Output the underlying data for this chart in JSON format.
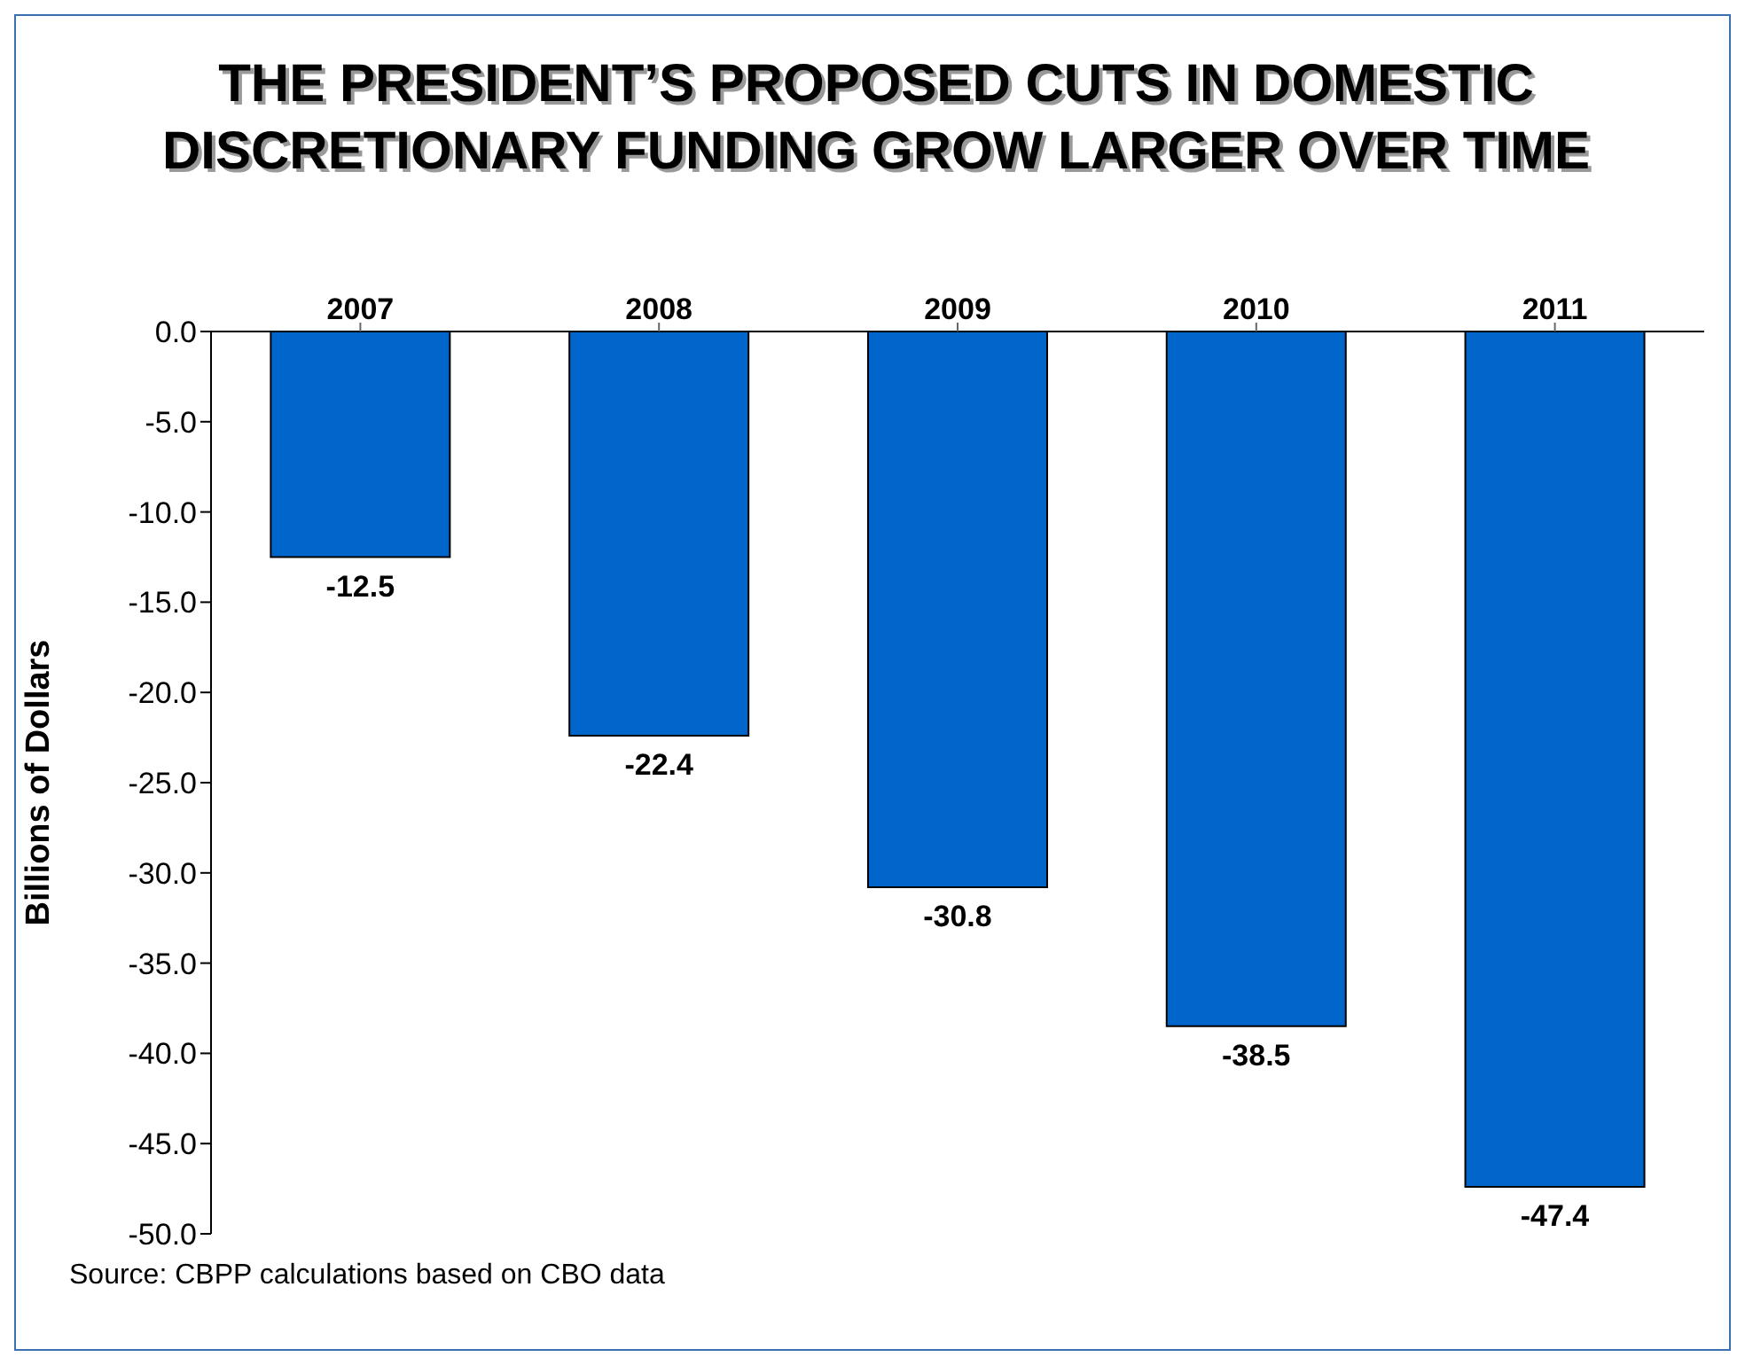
{
  "chart_data": {
    "type": "bar",
    "title": "THE PRESIDENT’S PROPOSED CUTS IN DOMESTIC DISCRETIONARY FUNDING GROW LARGER OVER TIME",
    "ylabel": "Billions of Dollars",
    "categories": [
      "2007",
      "2008",
      "2009",
      "2010",
      "2011"
    ],
    "values": [
      -12.5,
      -22.4,
      -30.8,
      -38.5,
      -47.4
    ],
    "color": "#0066cc",
    "data_labels": true,
    "grid": false,
    "ylim": [
      -50,
      0
    ],
    "yticks": [
      {
        "value": 0,
        "label": "0.0"
      },
      {
        "value": -5,
        "label": "-5.0"
      },
      {
        "value": -10,
        "label": "-10.0"
      },
      {
        "value": -15,
        "label": "-15.0"
      },
      {
        "value": -20,
        "label": "-20.0"
      },
      {
        "value": -25,
        "label": "-25.0"
      },
      {
        "value": -30,
        "label": "-30.0"
      },
      {
        "value": -35,
        "label": "-35.0"
      },
      {
        "value": -40,
        "label": "-40.0"
      },
      {
        "value": -45,
        "label": "-45.0"
      },
      {
        "value": -50,
        "label": "-50.0"
      }
    ],
    "annotations": [
      "Source: CBPP calculations based on CBO data"
    ]
  }
}
